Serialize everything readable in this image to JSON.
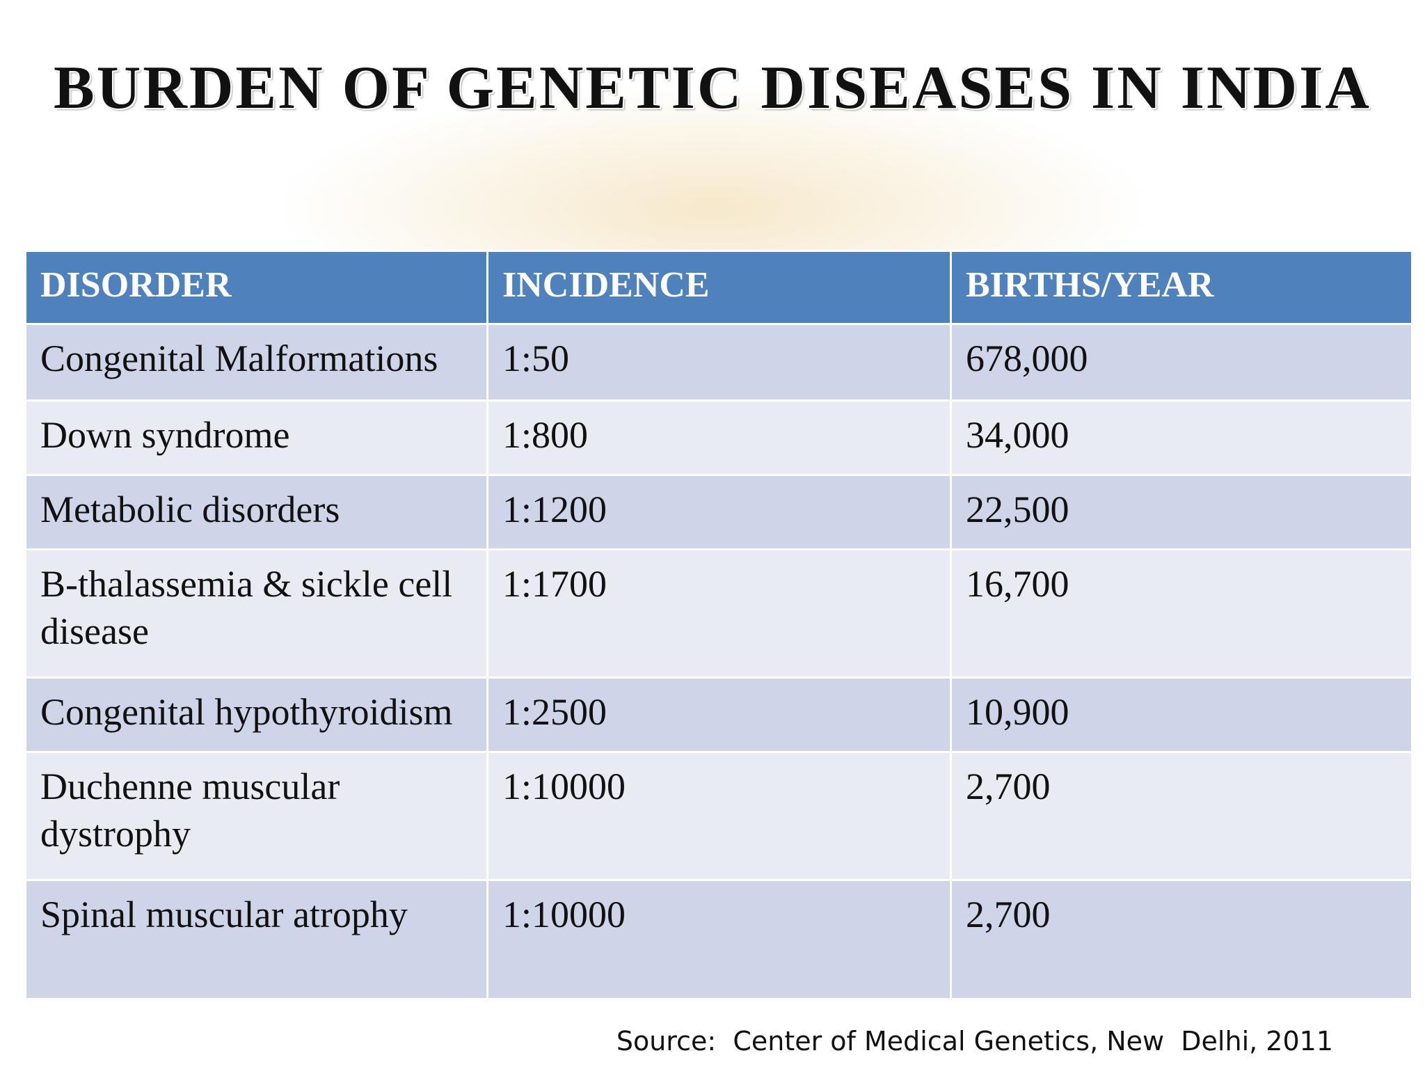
{
  "header": {
    "title": "BURDEN OF GENETIC DISEASES IN INDIA"
  },
  "table": {
    "columns": [
      "DISORDER",
      "INCIDENCE",
      "BIRTHS/YEAR"
    ],
    "rows": [
      [
        "Congenital Malformations",
        "1:50",
        "678,000"
      ],
      [
        "Down syndrome",
        "1:800",
        "34,000"
      ],
      [
        "Metabolic disorders",
        "1:1200",
        "22,500"
      ],
      [
        "B-thalassemia & sickle cell disease",
        "1:1700",
        "16,700"
      ],
      [
        "Congenital hypothyroidism",
        "1:2500",
        "10,900"
      ],
      [
        "Duchenne muscular dystrophy",
        "1:10000",
        "2,700"
      ],
      [
        "Spinal muscular atrophy",
        "1:10000",
        "2,700"
      ]
    ]
  },
  "footer": {
    "source": "Source:  Center of Medical Genetics, New  Delhi, 2011"
  }
}
